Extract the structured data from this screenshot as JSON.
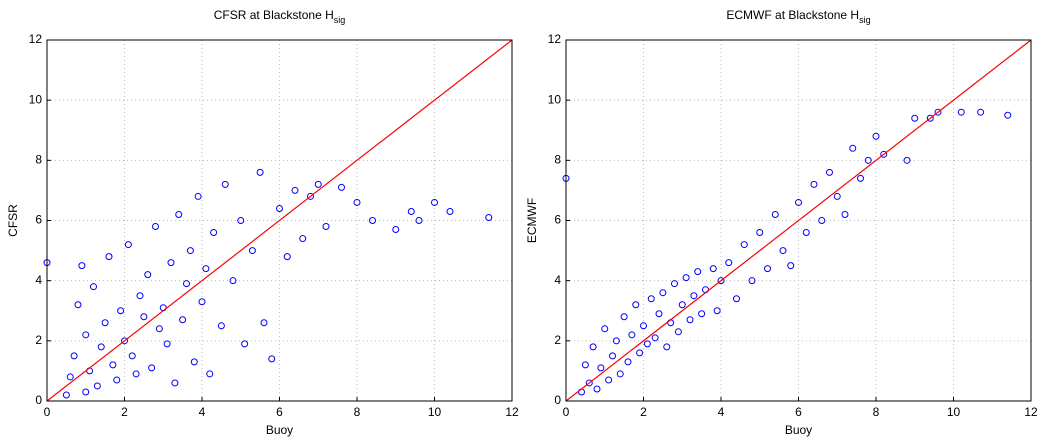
{
  "chart_data": [
    {
      "type": "scatter",
      "title": "CFSR at Blackstone H",
      "title_sub": "sig",
      "x_label": "Buoy",
      "y_label": "CFSR",
      "color": "#0000ff",
      "line_color": "#ff0000",
      "grid": true,
      "xlim": [
        0,
        12
      ],
      "ylim": [
        0,
        12
      ],
      "xticks": [
        0,
        2,
        4,
        6,
        8,
        10,
        12
      ],
      "yticks": [
        0,
        2,
        4,
        6,
        8,
        10,
        12
      ],
      "x": [
        0,
        0.5,
        0.6,
        0.7,
        0.8,
        0.9,
        1.0,
        1.0,
        1.1,
        1.2,
        1.3,
        1.4,
        1.5,
        1.6,
        1.7,
        1.8,
        1.9,
        2.0,
        2.1,
        2.2,
        2.3,
        2.4,
        2.5,
        2.6,
        2.7,
        2.8,
        2.9,
        3.0,
        3.1,
        3.2,
        3.3,
        3.4,
        3.5,
        3.6,
        3.7,
        3.8,
        3.9,
        4.0,
        4.1,
        4.2,
        4.3,
        4.5,
        4.6,
        4.8,
        5.0,
        5.1,
        5.3,
        5.5,
        5.6,
        5.8,
        6.0,
        6.2,
        6.4,
        6.6,
        6.8,
        7.0,
        7.2,
        7.6,
        8.0,
        8.4,
        9.0,
        9.4,
        9.6,
        10.0,
        10.4,
        11.4
      ],
      "values": [
        4.6,
        0.2,
        0.8,
        1.5,
        3.2,
        4.5,
        0.3,
        2.2,
        1.0,
        3.8,
        0.5,
        1.8,
        2.6,
        4.8,
        1.2,
        0.7,
        3.0,
        2.0,
        5.2,
        1.5,
        0.9,
        3.5,
        2.8,
        4.2,
        1.1,
        5.8,
        2.4,
        3.1,
        1.9,
        4.6,
        0.6,
        6.2,
        2.7,
        3.9,
        5.0,
        1.3,
        6.8,
        3.3,
        4.4,
        0.9,
        5.6,
        2.5,
        7.2,
        4.0,
        6.0,
        1.9,
        5.0,
        7.6,
        2.6,
        1.4,
        6.4,
        4.8,
        7.0,
        5.4,
        6.8,
        7.2,
        5.8,
        7.1,
        6.6,
        6.0,
        5.7,
        6.3,
        6.0,
        6.6,
        6.3,
        6.1
      ]
    },
    {
      "type": "scatter",
      "title": "ECMWF at Blackstone H",
      "title_sub": "sig",
      "x_label": "Buoy",
      "y_label": "ECMWF",
      "color": "#0000ff",
      "line_color": "#ff0000",
      "grid": true,
      "xlim": [
        0,
        12
      ],
      "ylim": [
        0,
        12
      ],
      "xticks": [
        0,
        2,
        4,
        6,
        8,
        10,
        12
      ],
      "yticks": [
        0,
        2,
        4,
        6,
        8,
        10,
        12
      ],
      "x": [
        0,
        0.4,
        0.5,
        0.6,
        0.7,
        0.8,
        0.9,
        1.0,
        1.1,
        1.2,
        1.3,
        1.4,
        1.5,
        1.6,
        1.7,
        1.8,
        1.9,
        2.0,
        2.1,
        2.2,
        2.3,
        2.4,
        2.5,
        2.6,
        2.7,
        2.8,
        2.9,
        3.0,
        3.1,
        3.2,
        3.3,
        3.4,
        3.5,
        3.6,
        3.8,
        3.9,
        4.0,
        4.2,
        4.4,
        4.6,
        4.8,
        5.0,
        5.2,
        5.4,
        5.6,
        5.8,
        6.0,
        6.2,
        6.4,
        6.6,
        6.8,
        7.0,
        7.2,
        7.4,
        7.6,
        7.8,
        8.0,
        8.2,
        8.8,
        9.0,
        9.4,
        9.6,
        10.2,
        10.7,
        11.4
      ],
      "values": [
        7.4,
        0.3,
        1.2,
        0.6,
        1.8,
        0.4,
        1.1,
        2.4,
        0.7,
        1.5,
        2.0,
        0.9,
        2.8,
        1.3,
        2.2,
        3.2,
        1.6,
        2.5,
        1.9,
        3.4,
        2.1,
        2.9,
        3.6,
        1.8,
        2.6,
        3.9,
        2.3,
        3.2,
        4.1,
        2.7,
        3.5,
        4.3,
        2.9,
        3.7,
        4.4,
        3.0,
        4.0,
        4.6,
        3.4,
        5.2,
        4.0,
        5.6,
        4.4,
        6.2,
        5.0,
        4.5,
        6.6,
        5.6,
        7.2,
        6.0,
        7.6,
        6.8,
        6.2,
        8.4,
        7.4,
        8.0,
        8.8,
        8.2,
        8.0,
        9.4,
        9.4,
        9.6,
        9.6,
        9.6,
        9.5
      ]
    }
  ]
}
